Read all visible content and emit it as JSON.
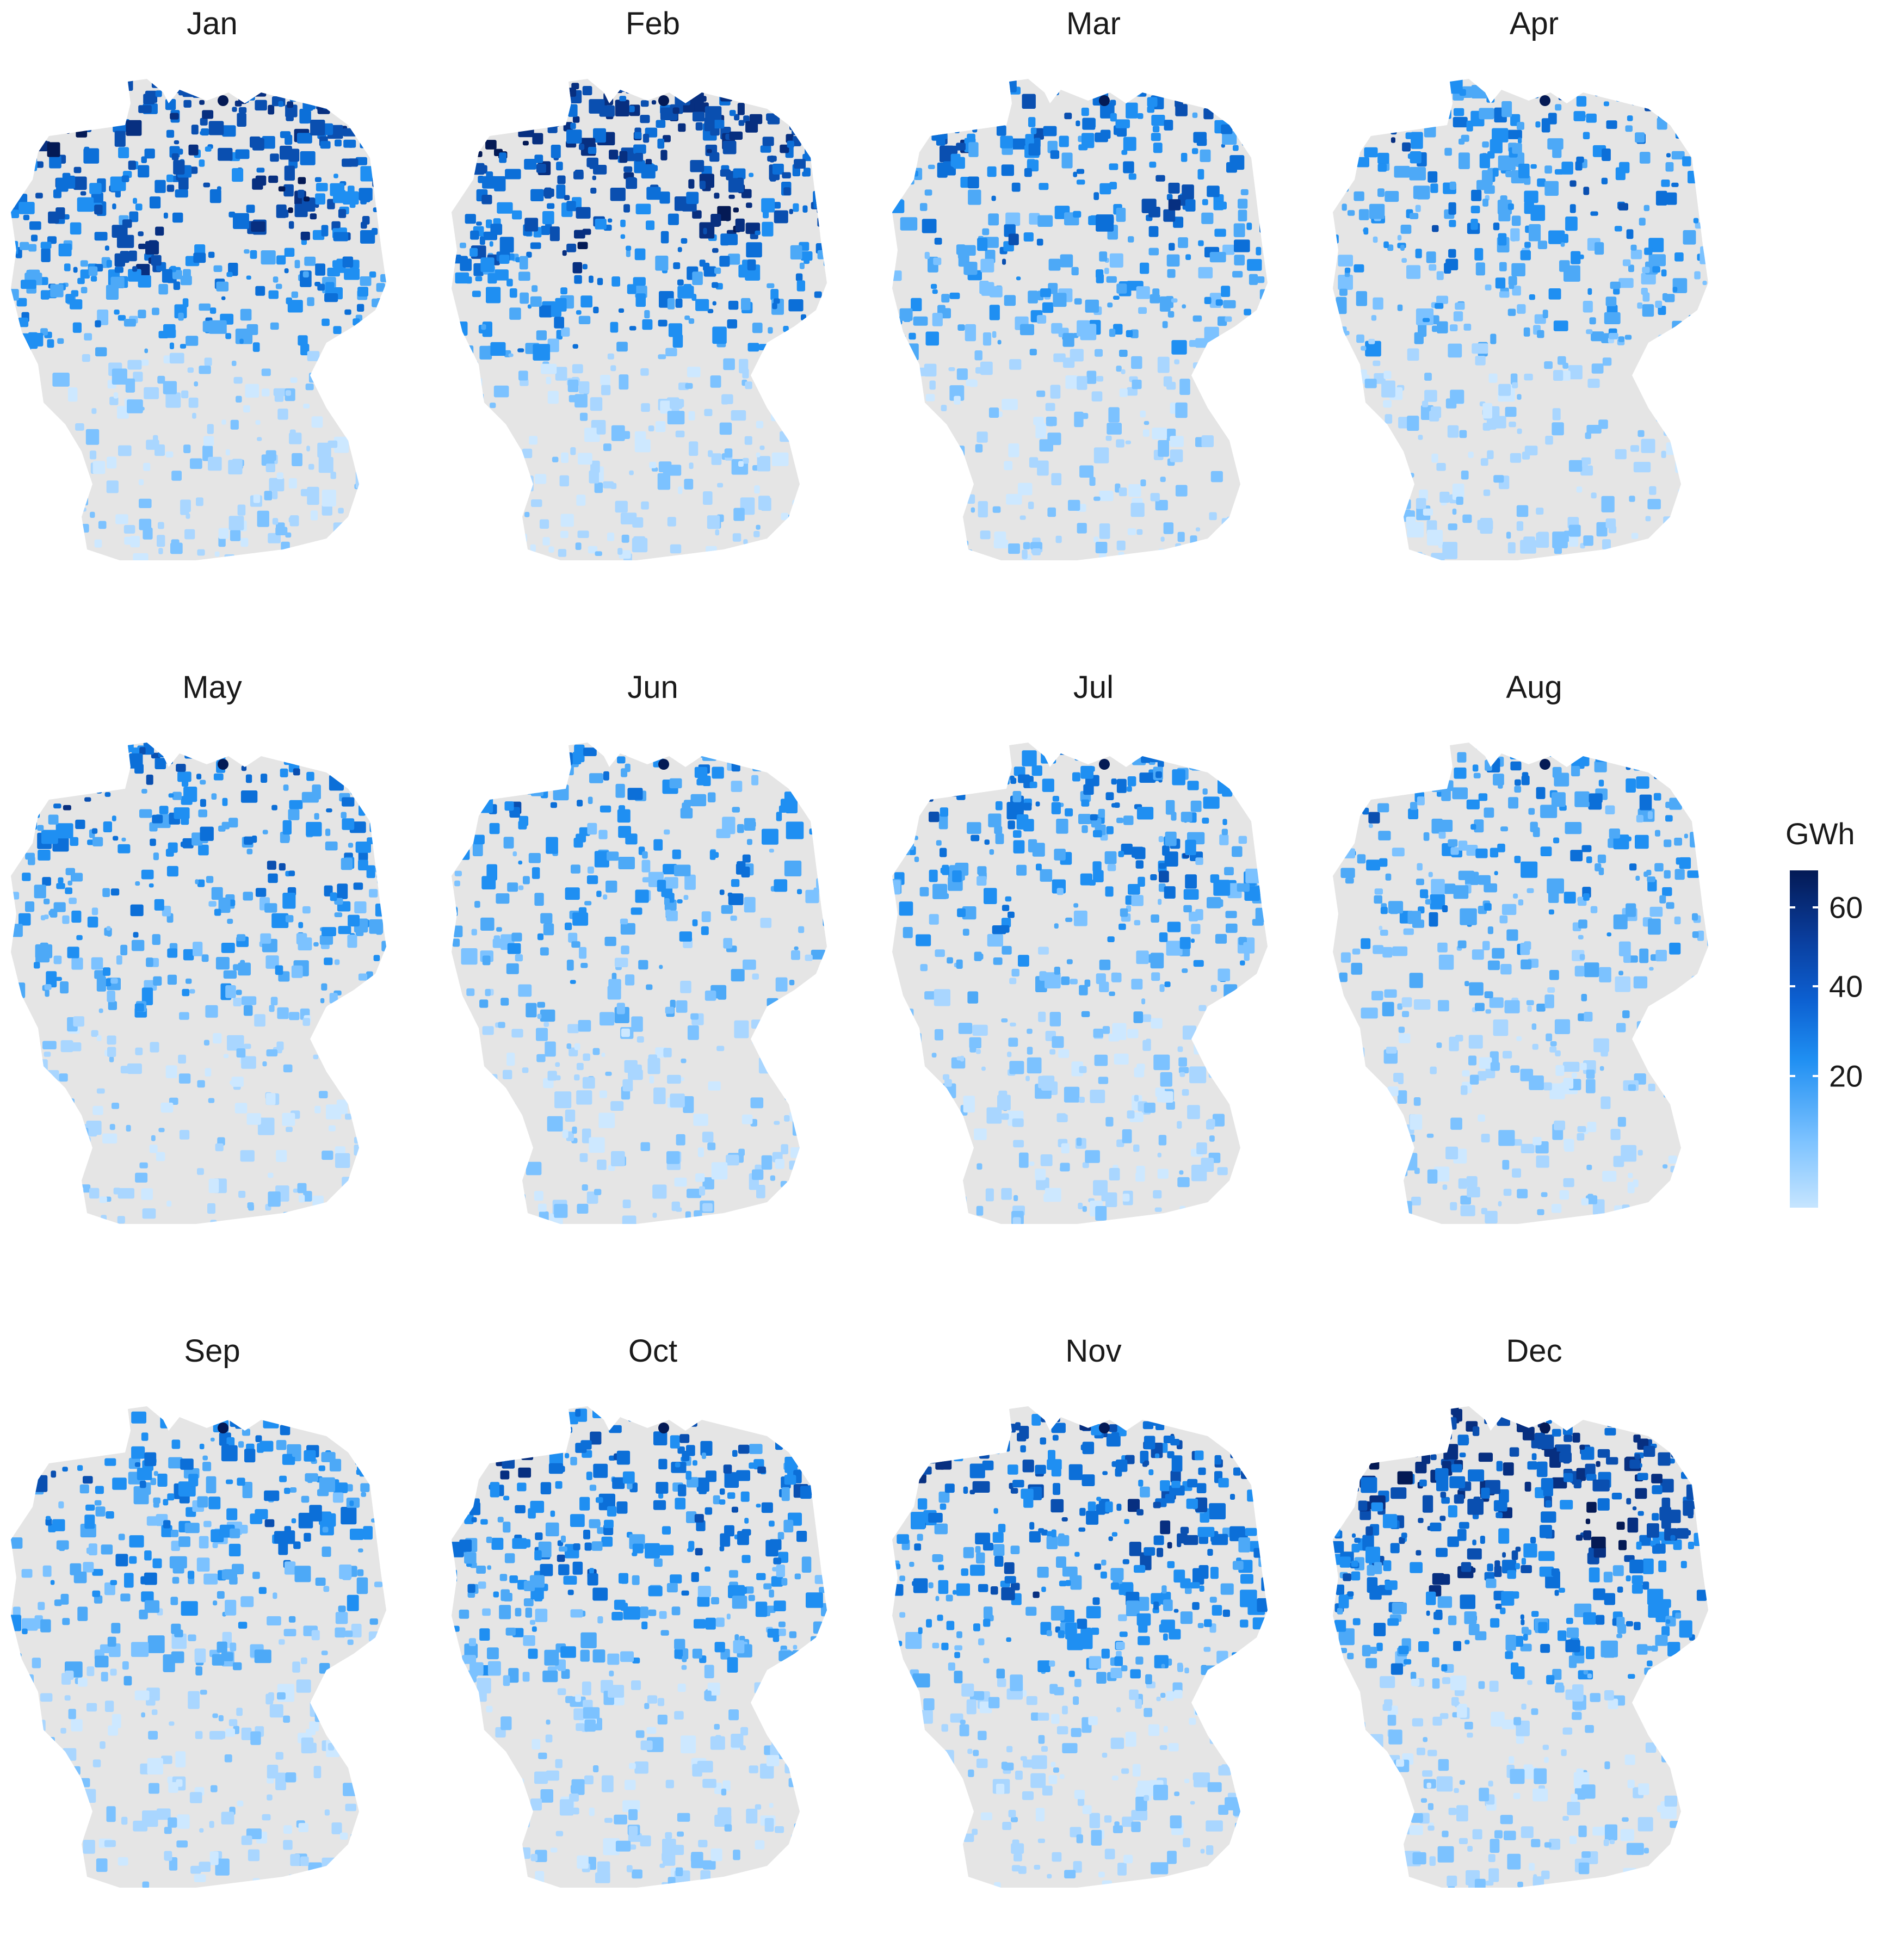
{
  "colors": {
    "no_data": "#e5e5e5",
    "low": "#c6e5ff",
    "mid": "#1f8ff2",
    "high": "#041a55"
  },
  "panels": [
    {
      "title": "Jan",
      "intensity": 0.8
    },
    {
      "title": "Feb",
      "intensity": 0.85
    },
    {
      "title": "Mar",
      "intensity": 0.6
    },
    {
      "title": "Apr",
      "intensity": 0.55
    },
    {
      "title": "May",
      "intensity": 0.58
    },
    {
      "title": "Jun",
      "intensity": 0.45
    },
    {
      "title": "Jul",
      "intensity": 0.5
    },
    {
      "title": "Aug",
      "intensity": 0.45
    },
    {
      "title": "Sep",
      "intensity": 0.5
    },
    {
      "title": "Oct",
      "intensity": 0.62
    },
    {
      "title": "Nov",
      "intensity": 0.7
    },
    {
      "title": "Dec",
      "intensity": 0.85
    }
  ],
  "legend": {
    "title": "GWh",
    "ticks": [
      {
        "label": "60",
        "value": 60
      },
      {
        "label": "40",
        "value": 40
      },
      {
        "label": "20",
        "value": 20
      }
    ],
    "range": [
      0,
      70
    ]
  }
}
